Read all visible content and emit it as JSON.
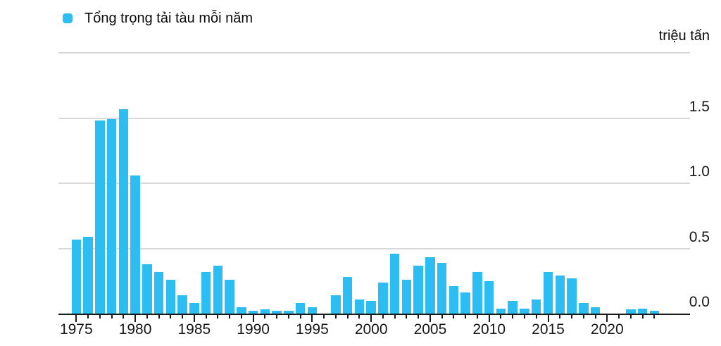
{
  "legend": {
    "label": "Tổng trọng tải tàu mỗi năm"
  },
  "unit_label": "triệu tấn",
  "colors": {
    "bar": "#2CBDF2",
    "gridline": "#D9D9D9",
    "axis": "#1A1A1A",
    "text": "#161616"
  },
  "chart_data": {
    "type": "bar",
    "title": "",
    "legend_entries": [
      "Tổng trọng tải tàu mỗi năm"
    ],
    "legend_position": "top-left",
    "ylabel": "triệu tấn",
    "ylabel_position": "top-right",
    "xlabel": "",
    "grid": "horizontal lines every 0.5 from 0.0 to 2.0; top line (2.0) unlabeled; baseline is dark axis",
    "ylim": [
      0,
      2.0
    ],
    "ytick_labels": [
      "0.0",
      "0.5",
      "1.0",
      "1.5"
    ],
    "xtick_labeled_years": [
      1975,
      1980,
      1985,
      1990,
      1995,
      2000,
      2005,
      2010,
      2015,
      2020
    ],
    "xtick_minor": "every year 1975–2024",
    "categories": [
      1975,
      1976,
      1977,
      1978,
      1979,
      1980,
      1981,
      1982,
      1983,
      1984,
      1985,
      1986,
      1987,
      1988,
      1989,
      1990,
      1991,
      1992,
      1993,
      1994,
      1995,
      1996,
      1997,
      1998,
      1999,
      2000,
      2001,
      2002,
      2003,
      2004,
      2005,
      2006,
      2007,
      2008,
      2009,
      2010,
      2011,
      2012,
      2013,
      2014,
      2015,
      2016,
      2017,
      2018,
      2019,
      2020,
      2021,
      2022,
      2023,
      2024
    ],
    "values": [
      0.57,
      0.59,
      1.48,
      1.49,
      1.57,
      1.06,
      0.38,
      0.32,
      0.26,
      0.14,
      0.08,
      0.32,
      0.37,
      0.26,
      0.05,
      0.02,
      0.03,
      0.02,
      0.02,
      0.08,
      0.05,
      0,
      0.14,
      0.28,
      0.11,
      0.1,
      0.24,
      0.46,
      0.26,
      0.37,
      0.43,
      0.39,
      0.21,
      0.16,
      0.32,
      0.25,
      0.04,
      0.1,
      0.04,
      0.11,
      0.32,
      0.29,
      0.27,
      0.08,
      0.05,
      0,
      0,
      0.03,
      0.04,
      0.02
    ]
  }
}
